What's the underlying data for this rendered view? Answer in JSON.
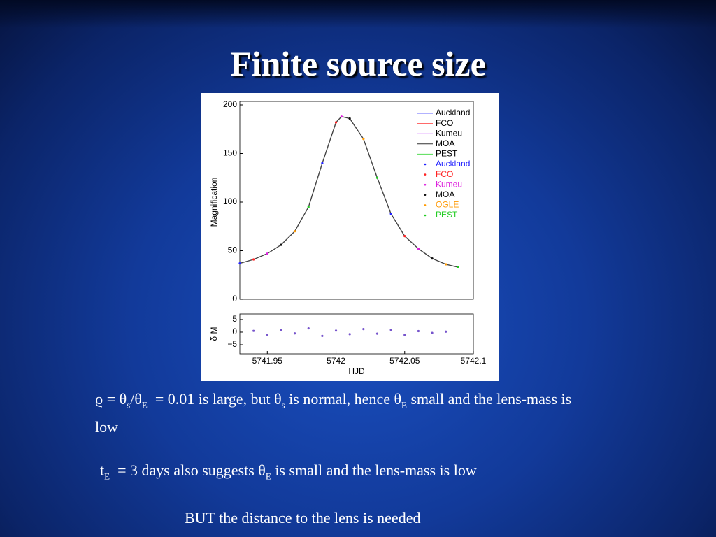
{
  "slide": {
    "title": "Finite source size",
    "paragraphs": [
      [
        {
          "t": "ϱ = θ"
        },
        {
          "sub": "s"
        },
        {
          "t": "/θ"
        },
        {
          "sub": "E"
        },
        {
          "t": "  = 0.01 is large, but θ"
        },
        {
          "sub": "s"
        },
        {
          "t": " is normal, hence θ"
        },
        {
          "sub": "E"
        },
        {
          "t": " small and the lens-mass is low"
        }
      ],
      [
        {
          "t": "t"
        },
        {
          "sub": "E"
        },
        {
          "t": "  = 3 days also suggests θ"
        },
        {
          "sub": "E"
        },
        {
          "t": " is small and the lens-mass is low"
        }
      ],
      [
        {
          "t": "BUT the distance to the lens is needed"
        }
      ]
    ]
  },
  "chart_data": [
    {
      "type": "line",
      "y_label": "Magnification",
      "x": [
        5741.93,
        5741.94,
        5741.95,
        5741.96,
        5741.97,
        5741.98,
        5741.99,
        5742.0,
        5742.004,
        5742.01,
        5742.02,
        5742.03,
        5742.04,
        5742.05,
        5742.06,
        5742.07,
        5742.08,
        5742.089
      ],
      "series": [
        {
          "color": "#444444",
          "values": [
            37,
            41,
            47,
            56,
            70,
            95,
            140,
            182,
            188,
            186,
            165,
            125,
            88,
            65,
            52,
            42,
            36,
            33
          ]
        }
      ],
      "xlim": [
        5741.93,
        5742.1
      ],
      "ylim": [
        0,
        200
      ],
      "yticks": [
        0,
        50,
        100,
        150,
        200
      ],
      "legend": [
        {
          "label": "Auckland",
          "color": "#6666ff",
          "style": "line"
        },
        {
          "label": "FCO",
          "color": "#ff5555",
          "style": "line"
        },
        {
          "label": "Kumeu",
          "color": "#cc66ff",
          "style": "line"
        },
        {
          "label": "MOA",
          "color": "#333333",
          "style": "line"
        },
        {
          "label": "PEST",
          "color": "#55dd55",
          "style": "line"
        },
        {
          "label": "Auckland",
          "color": "#2222ff",
          "style": "point"
        },
        {
          "label": "FCO",
          "color": "#ff2222",
          "style": "point"
        },
        {
          "label": "Kumeu",
          "color": "#dd22dd",
          "style": "point"
        },
        {
          "label": "MOA",
          "color": "#111111",
          "style": "point"
        },
        {
          "label": "OGLE",
          "color": "#ff9900",
          "style": "point"
        },
        {
          "label": "PEST",
          "color": "#22cc22",
          "style": "point"
        }
      ]
    },
    {
      "type": "scatter",
      "y_label": "δ M",
      "x_label": "HJD",
      "x": [
        5741.94,
        5741.95,
        5741.96,
        5741.97,
        5741.98,
        5741.99,
        5742.0,
        5742.01,
        5742.02,
        5742.03,
        5742.04,
        5742.05,
        5742.06,
        5742.07,
        5742.08
      ],
      "series": [
        {
          "color": "#7755cc",
          "values": [
            0.5,
            -1,
            0.8,
            -0.5,
            1.5,
            -1.5,
            0.6,
            -0.8,
            1.2,
            -0.6,
            0.9,
            -1.1,
            0.4,
            -0.3,
            0.2
          ]
        }
      ],
      "xlim": [
        5741.93,
        5742.1
      ],
      "xticks": [
        5741.95,
        5742,
        5742.05,
        5742.1
      ],
      "ylim": [
        -8.6,
        7.2
      ],
      "yticks": [
        {
          "value": -5,
          "label": "−5"
        },
        0,
        5
      ]
    }
  ]
}
